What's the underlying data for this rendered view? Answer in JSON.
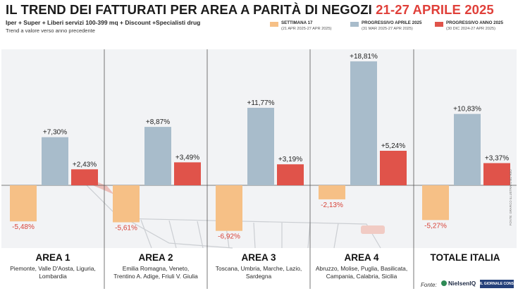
{
  "header": {
    "title_main": "IL TREND DEI FATTURATI PER AREA A PARITÀ DI NEGOZI",
    "title_accent": "21-27 APRILE 2025",
    "subtitle": "Iper + Super + Liberi servizi 100-399 mq + Discount +Specialisti drug",
    "note": "Trend a valore verso anno precedente"
  },
  "legend": [
    {
      "label": "SETTIMANA 17",
      "sub": "(21 APR 2025-27 APR 2025)",
      "color": "#f6c086"
    },
    {
      "label": "PROGRESSIVO APRILE 2025",
      "sub": "(31 MAR 2025-27 APR 2025)",
      "color": "#a8bccb"
    },
    {
      "label": "PROGRESSIVO ANNO 2025",
      "sub": "(30 DIC 2024-27 APR 2025)",
      "color": "#e0534a"
    }
  ],
  "chart_data": {
    "type": "bar",
    "categories": [
      "AREA 1",
      "AREA 2",
      "AREA 3",
      "AREA 4",
      "TOTALE ITALIA"
    ],
    "regions": [
      [
        "Piemonte, Valle D'Aosta, Liguria,",
        "Lombardia"
      ],
      [
        "Emilia Romagna, Veneto,",
        "Trentino A. Adige, Friuli V. Giulia"
      ],
      [
        "Toscana, Umbria, Marche, Lazio,",
        "Sardegna"
      ],
      [
        "Abruzzo, Molise, Puglia, Basilicata,",
        "Campania, Calabria, Sicilia"
      ],
      []
    ],
    "series": [
      {
        "name": "SETTIMANA 17",
        "values": [
          -5.48,
          -5.61,
          -6.92,
          -2.13,
          -5.27
        ],
        "labels": [
          "-5,48%",
          "-5,61%",
          "-6,92%",
          "-2,13%",
          "-5,27%"
        ]
      },
      {
        "name": "PROGRESSIVO APRILE 2025",
        "values": [
          7.3,
          8.87,
          11.77,
          18.81,
          10.83
        ],
        "labels": [
          "+7,30%",
          "+8,87%",
          "+11,77%",
          "+18,81%",
          "+10,83%"
        ]
      },
      {
        "name": "PROGRESSIVO ANNO 2025",
        "values": [
          2.43,
          3.49,
          3.19,
          5.24,
          3.37
        ],
        "labels": [
          "+2,43%",
          "+3,49%",
          "+3,19%",
          "+5,24%",
          "+3,37%"
        ]
      }
    ],
    "colors": [
      "#f6c086",
      "#a8bccb",
      "#e0534a"
    ],
    "label_colors": [
      "#d8443a",
      "#1f1f1f",
      "#1f1f1f"
    ],
    "ylim": [
      -8,
      20
    ]
  },
  "footer": {
    "fonte_label": "Fonte:",
    "source1": "NielsenIQ",
    "source2": "IL GIORNALE CONSUMI",
    "credit": "FONTE: GRAFICO ILLUSTRATO BO RSO"
  }
}
